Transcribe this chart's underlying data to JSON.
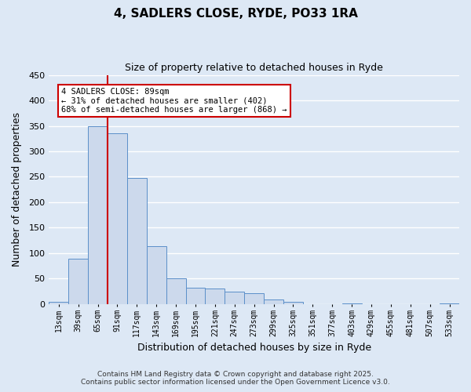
{
  "title": "4, SADLERS CLOSE, RYDE, PO33 1RA",
  "subtitle": "Size of property relative to detached houses in Ryde",
  "xlabel": "Distribution of detached houses by size in Ryde",
  "ylabel": "Number of detached properties",
  "bar_color": "#ccd9ec",
  "bar_edge_color": "#5b8fc9",
  "background_color": "#dde8f5",
  "fig_background_color": "#dde8f5",
  "grid_color": "#ffffff",
  "categories": [
    "13sqm",
    "39sqm",
    "65sqm",
    "91sqm",
    "117sqm",
    "143sqm",
    "169sqm",
    "195sqm",
    "221sqm",
    "247sqm",
    "273sqm",
    "299sqm",
    "325sqm",
    "351sqm",
    "377sqm",
    "403sqm",
    "429sqm",
    "455sqm",
    "481sqm",
    "507sqm",
    "533sqm"
  ],
  "values": [
    5,
    89,
    350,
    335,
    248,
    113,
    50,
    32,
    30,
    25,
    21,
    9,
    5,
    0,
    0,
    2,
    0,
    0,
    0,
    0,
    1
  ],
  "ylim": [
    0,
    450
  ],
  "yticks": [
    0,
    50,
    100,
    150,
    200,
    250,
    300,
    350,
    400,
    450
  ],
  "vline_x_index": 3,
  "vline_color": "#cc0000",
  "annotation_text": "4 SADLERS CLOSE: 89sqm\n← 31% of detached houses are smaller (402)\n68% of semi-detached houses are larger (868) →",
  "annotation_box_color": "#ffffff",
  "annotation_box_edge": "#cc0000",
  "footer_line1": "Contains HM Land Registry data © Crown copyright and database right 2025.",
  "footer_line2": "Contains public sector information licensed under the Open Government Licence v3.0.",
  "figsize": [
    6.0,
    5.0
  ],
  "dpi": 100
}
